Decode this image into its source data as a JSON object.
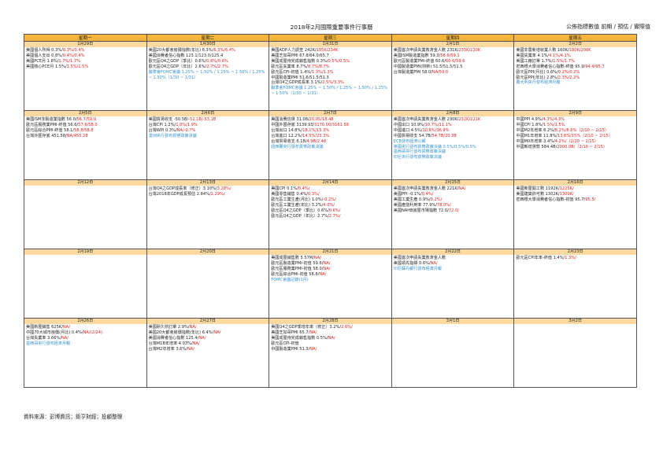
{
  "title": "2018年2月國際重要事件行事曆",
  "legend": "公佈指標數值 前期 / 預估 / 實際值",
  "weekdays": [
    "星期一",
    "星期二",
    "星期三",
    "星期四",
    "星期五"
  ],
  "weeks": [
    {
      "dates": [
        "1月29日",
        "1月30日",
        "1月31日",
        "2月1日",
        "2月2日"
      ],
      "cells": [
        [
          {
            "t": "美國個人所得 0.3%/",
            "v": "0.3%/0.4%"
          },
          {
            "t": "美國個人支出 0.8%/",
            "v": "0.4%/0.4%"
          },
          {
            "t": "美國PCE月 1.8%/",
            "v": "1.7%/1.7%"
          },
          {
            "t": "美國核心PCE月 1.5%/",
            "v": "1.5%/1.5%"
          }
        ],
        [
          {
            "t": "美國20大都會房價指數(年比) 6.3%/",
            "v": "6.3%/6.4%"
          },
          {
            "t": "美國消費者信心指數 123.1/123.0/125.4"
          },
          {
            "t": "歐元區Q4之GDP（季比）0.6%/",
            "v": "0.6%/0.6%"
          },
          {
            "t": "歐元區Q4之GDP（年比）2.6%/",
            "v": "2.7%/2.7%"
          },
          {
            "t": "聯準會FOMC會議 1.25% ~ 1.50% / 1.25% ~ 1.50% / 1.25% ~ 1.50%（1/30 ~ 1/31）",
            "c": "b"
          }
        ],
        [
          {
            "t": "美國ADP人力調查 242K/",
            "v": "185K/234K"
          },
          {
            "t": "美國芝加哥PMI 67.8/64.0/65.7"
          },
          {
            "t": "美國成屋待完成銷售指數 0.3%/",
            "v": "0.5%/0.5%"
          },
          {
            "t": "歐元區失業率 8.7%/",
            "v": "8.7%/8.7%"
          },
          {
            "t": "歐元區CPI-初值 1.4%/",
            "v": "1.3%/1.3%"
          },
          {
            "t": "中國製造業PMI 51.6/51.5/51.3"
          },
          {
            "t": "台灣Q4之GDP成長率 3.1%/",
            "v": "2.5%/3.3%"
          },
          {
            "t": "聯準會FOMC會議 1.25% ~ 1.50% / 1.25% ~ 1.50% / 1.25% ~ 1.50%（1/30 ~ 1/31）",
            "c": "b"
          }
        ],
        [
          {
            "t": "美國首次申請失業救濟金人數 231K/",
            "v": "235K/230K"
          },
          {
            "t": "美國ISM製造業指數 59.3/",
            "v": "58.6/59.1"
          },
          {
            "t": "歐元區製造業PMI-終值 60.6/",
            "v": "60.6/59.6"
          },
          {
            "t": "中國製造業PMI(財新) 51.5/51.5/51.5"
          },
          {
            "t": "台灣製造業PMI 58.0/",
            "v": "NA/59.0"
          }
        ],
        [
          {
            "t": "美國非農新增就業人數 160K/",
            "v": "180K/200K"
          },
          {
            "t": "美國失業率 4.1%/",
            "v": "4.1%/4.1%"
          },
          {
            "t": "美國工廠訂單 1.7%/",
            "v": "1.5%/1.7%"
          },
          {
            "t": "密西根大學消費者信心指數-終值 95.9/",
            "v": "94.4/95.7"
          },
          {
            "t": "歐元區PPI(月比) 0.6%/",
            "v": "0.2%/0.2%"
          },
          {
            "t": "歐元區PPI(年比) 2.8%/",
            "v": "2.3%/2.2%"
          },
          {
            "t": "義大利央行發布經濟月報",
            "c": "b"
          }
        ]
      ]
    },
    {
      "dates": [
        "2月5日",
        "2月6日",
        "2月7日",
        "2月8日",
        "2月9日"
      ],
      "cells": [
        [
          {
            "t": "美國ISM非製造業指數 56.0/",
            "v": "56.7/59.9"
          },
          {
            "t": "歐元區服務業PMI-終值 56.6/",
            "v": "57.6/58.0"
          },
          {
            "t": "歐元區綜合PMI-終值 58.1/",
            "v": "58.8/58.8"
          },
          {
            "t": "台灣外匯存底 451.58/",
            "v": "NA/455.28"
          }
        ],
        [
          {
            "t": "美國貿易收支 -50.5B/",
            "v": "-52.1B/-53.1B"
          },
          {
            "t": "台灣CPI 1.2%/",
            "v": "1.0%/1.9%"
          },
          {
            "t": "台灣WPI 0.3%/",
            "v": "NA/-0.7%"
          },
          {
            "t": "澳洲央行發布貨幣政策決議",
            "c": "b"
          }
        ],
        [
          {
            "t": "美國消費信貸 31.08/",
            "v": "20.05/18.48"
          },
          {
            "t": "中國外匯存底 3139.93/",
            "v": "3170.00/3161.58"
          },
          {
            "t": "台灣出口 14.8%/",
            "v": "18.1%/15.3%"
          },
          {
            "t": "台灣進口 12.2%/",
            "v": "14.5%/23.3%"
          },
          {
            "t": "台灣貿易收支 6.18/",
            "v": "4.9B/2.48"
          },
          {
            "t": "紐西蘭央行發布貨幣政策決議",
            "c": "b"
          }
        ],
        [
          {
            "t": "美國首次申請失業救濟金人數 230K/",
            "v": "232K/221K"
          },
          {
            "t": "中國出口 10.9%/",
            "v": "10.7%/11.1%"
          },
          {
            "t": "中國進口 4.5%/",
            "v": "10.6%/36.9%"
          },
          {
            "t": "中國貿易收支 54.7B/",
            "v": "54.7B/20.3B"
          },
          {
            "t": "ECB發布經濟公報",
            "c": "b"
          },
          {
            "t": "英國央行發布貨幣政策決議 0.5%/0.5%/0.5%",
            "c": "b"
          },
          {
            "t": "墨西哥央行發布貨幣政策決議",
            "c": "b"
          },
          {
            "t": "印尼央行發布貨幣政策決議",
            "c": "b"
          }
        ],
        [
          {
            "t": "中國PPI 4.9%/",
            "v": "4.3%/4.3%"
          },
          {
            "t": "中國CPI 1.8%/",
            "v": "1.5%/1.5%"
          },
          {
            "t": "中國M2年增率 8.2%/",
            "v": "8.2%/8.6%（2/10 ~ 2/15）"
          },
          {
            "t": "中國M1年增率 11.8%/",
            "v": "13.6%/15%（2/10 ~ 2/15）"
          },
          {
            "t": "中國M0年增率 3.4%/",
            "v": "4.2%/（2/10 ~ 2/15）"
          },
          {
            "t": "中國新增貸款 584.4B/",
            "v": "2000.0B/（2/10 ~ 2/15）"
          }
        ]
      ]
    },
    {
      "dates": [
        "2月12日",
        "2月13日",
        "2月14日",
        "2月15日",
        "2月16日"
      ],
      "cells": [
        [],
        [
          {
            "t": "台灣Q4之GDP成長率（修正）3.10%/",
            "v": "3.28%/"
          },
          {
            "t": "台灣2018年GDP成長預估 2.84%/",
            "v": "2.29%/"
          }
        ],
        [
          {
            "t": "美國CPI 0.1%/",
            "v": "0.4%/"
          },
          {
            "t": "美國零售銷售 0.4%/",
            "v": "0.3%/"
          },
          {
            "t": "歐元區工業生產(月比) 1.0%/",
            "v": "-0.2%/"
          },
          {
            "t": "歐元區工業生產(年比) 3.2%/",
            "v": "4.0%/"
          },
          {
            "t": "歐元區Q4之GDP（季比）0.6%/",
            "v": "0.6%/"
          },
          {
            "t": "歐元區Q4之GDP（年比）2.7%/",
            "v": "2.7%/"
          }
        ],
        [
          {
            "t": "美國首次申請失業救濟金人數 221K/",
            "v": "NA/"
          },
          {
            "t": "美國PPI -0.1%/",
            "v": "0.4%/"
          },
          {
            "t": "美國工業生產 0.9%/",
            "v": "0.2%/"
          },
          {
            "t": "美國產能利用率 77.9%/",
            "v": "78.0%/"
          },
          {
            "t": "美國NAHB房屋市場指數 72.0/",
            "v": "72.0/"
          }
        ],
        [
          {
            "t": "美國新屋開工數 1192K/",
            "v": "1225K/"
          },
          {
            "t": "美國建築許可數 1302K/",
            "v": "1300K/"
          },
          {
            "t": "密西根大學消費者信心指數-初值 95.7/",
            "v": "95.5/"
          }
        ]
      ]
    },
    {
      "dates": [
        "2月19日",
        "2月20日",
        "2月21日",
        "2月22日",
        "2月23日"
      ],
      "cells": [
        [],
        [],
        [
          {
            "t": "美國成屋銷售數 5.57M/",
            "v": "NA/"
          },
          {
            "t": "歐元區製造業PMI-初值 59.6/",
            "v": "NA/"
          },
          {
            "t": "歐元區服務業PMI-初值 58.0/",
            "v": "NA/"
          },
          {
            "t": "歐元區綜合PMI-初值 58.8/",
            "v": "NA/"
          },
          {
            "t": "FOMC會議記錄(1月)",
            "c": "b"
          }
        ],
        [
          {
            "t": "美國首次申請失業救濟金人數"
          },
          {
            "t": "美國領先指標 0.6%/",
            "v": "NA/"
          },
          {
            "t": "印尼蘇丹銀行發布經濟月報",
            "c": "b"
          }
        ],
        [
          {
            "t": "歐元區CPI年率-終值 1.4%/",
            "v": "1.3%/"
          }
        ]
      ]
    },
    {
      "dates": [
        "2月26日",
        "2月27日",
        "2月28日",
        "3月1日",
        "3月2日"
      ],
      "cells": [
        [
          {
            "t": "美國新屋銷售 625K/",
            "v": "NA/"
          },
          {
            "t": "中國70大城市房價(月比) 0.4%/",
            "v": "NA/(2/24)"
          },
          {
            "t": "台灣失業率 3.66%/",
            "v": "NA/"
          },
          {
            "t": "墨西哥央行發布經濟月報",
            "c": "b"
          }
        ],
        [
          {
            "t": "美國耐久財訂單 2.9%/",
            "v": "NA/"
          },
          {
            "t": "美國20大都會房價指數(年比) 6.4%/",
            "v": "NA/"
          },
          {
            "t": "美國消費者信心指數 125.4/",
            "v": "NA/"
          },
          {
            "t": "台灣M1B年增率 4.03%/",
            "v": "NA/"
          },
          {
            "t": "台灣M2年增率 3.6%/",
            "v": "NA/"
          }
        ],
        [
          {
            "t": "美國Q4之GDP季增年率（修正）3.2%/",
            "v": "2.6%/"
          },
          {
            "t": "美國芝加哥PMI 65.7/",
            "v": "NA/"
          },
          {
            "t": "美國成屋待完成銷售指數 0.5%/",
            "v": "NA/"
          },
          {
            "t": "歐元區CPI-初值"
          },
          {
            "t": "中國製造業PMI 51.3/",
            "v": "NA/"
          }
        ],
        [],
        []
      ]
    }
  ],
  "footer": "資料來源：彭博資訊；鉅亨財經；投顧整理"
}
